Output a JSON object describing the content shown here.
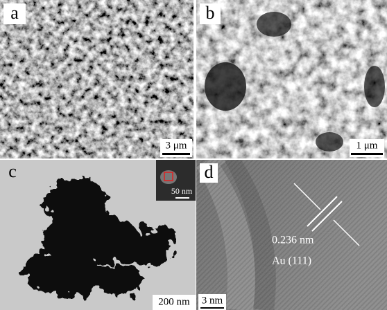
{
  "panels": [
    {
      "label": "a",
      "scale_bar": "3 μm"
    },
    {
      "label": "b",
      "scale_bar": "1 μm"
    },
    {
      "label": "c",
      "scale_bar": "200 nm",
      "inset_scale_bar": "50 nm"
    },
    {
      "label": "d",
      "scale_bar": "3 nm",
      "annotations": [
        "0.236 nm",
        "Au (111)"
      ]
    }
  ]
}
